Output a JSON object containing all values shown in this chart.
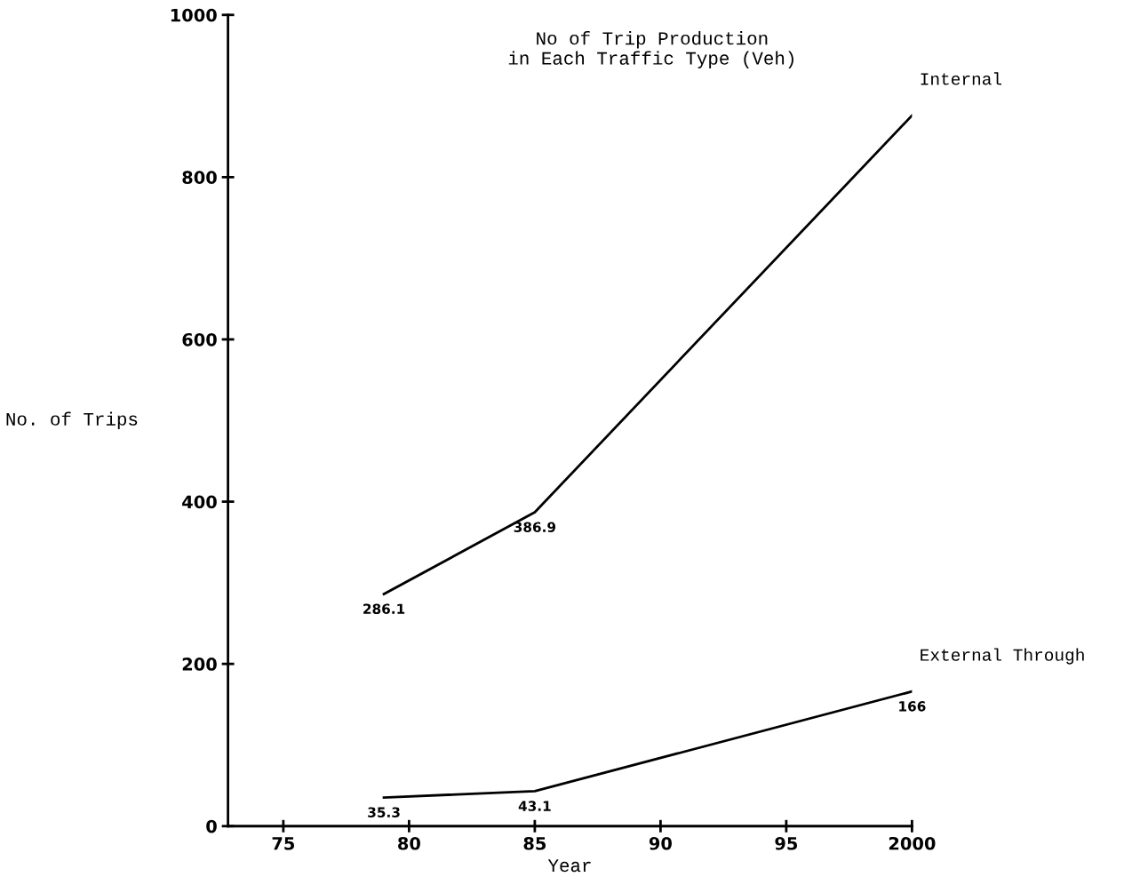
{
  "chart_data": {
    "type": "line",
    "title": "No of Trip Production\nin Each Traffic Type (Veh)",
    "xlabel": "Year",
    "ylabel": "No. of Trips",
    "series": [
      {
        "name": "Internal",
        "color": "#000000",
        "x": [
          1979,
          1985,
          2000
        ],
        "values": [
          286.1,
          386.9,
          876
        ],
        "value_labels": [
          "286.1",
          "386.9",
          null
        ]
      },
      {
        "name": "External Through",
        "color": "#000000",
        "x": [
          1979,
          1985,
          2000
        ],
        "values": [
          35.3,
          43.1,
          166
        ],
        "value_labels": [
          "35.3",
          "43.1",
          "166"
        ]
      }
    ],
    "xlim": [
      1972.8,
      2000
    ],
    "xticks": [
      {
        "value": 1975,
        "label": "75"
      },
      {
        "value": 1980,
        "label": "80"
      },
      {
        "value": 1985,
        "label": "85"
      },
      {
        "value": 1990,
        "label": "90"
      },
      {
        "value": 1995,
        "label": "95"
      },
      2000
    ],
    "ylim": [
      0,
      1000
    ],
    "yticks": [
      0,
      200,
      400,
      600,
      800,
      1000
    ],
    "grid": false,
    "legend": false,
    "marker": "none",
    "line_style": "solid"
  }
}
